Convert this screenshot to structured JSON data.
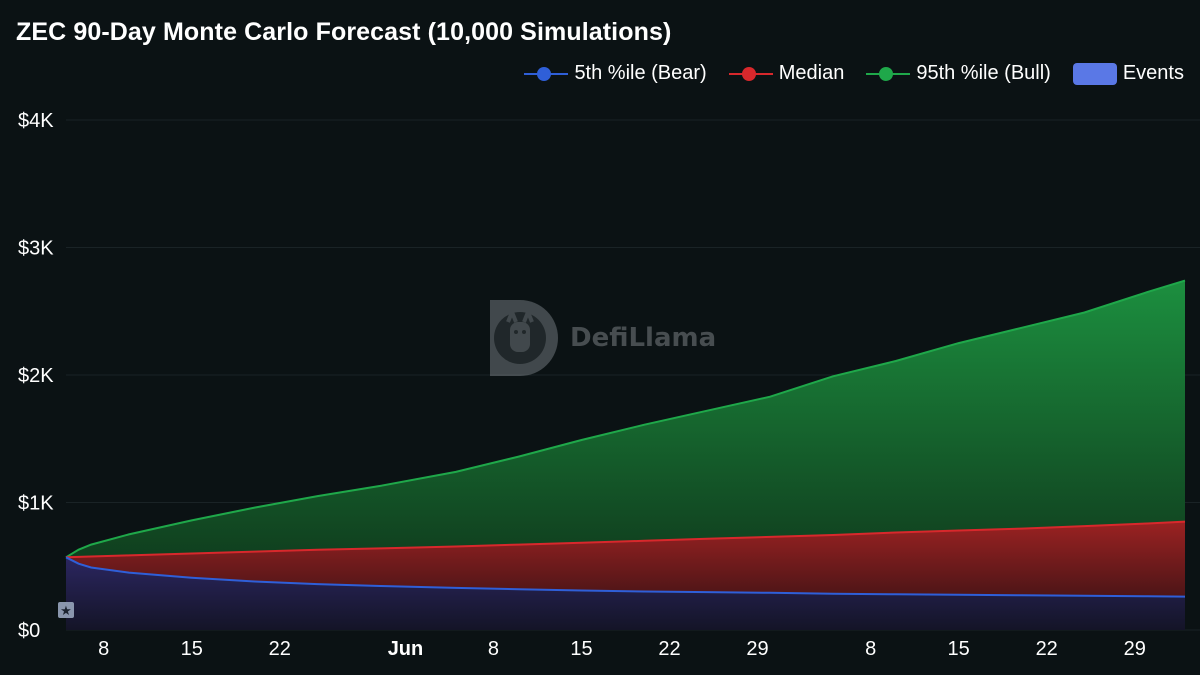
{
  "title": "ZEC 90-Day Monte Carlo Forecast (10,000 Simulations)",
  "watermark": "DefiLlama",
  "legend": [
    {
      "label": "5th %ile (Bear)",
      "color": "#2f5fd8",
      "kind": "line"
    },
    {
      "label": "Median",
      "color": "#d8282c",
      "kind": "line"
    },
    {
      "label": "95th %ile (Bull)",
      "color": "#1fa84a",
      "kind": "line"
    },
    {
      "label": "Events",
      "color": "#5a78e6",
      "kind": "rect"
    }
  ],
  "chart_data": {
    "type": "area",
    "title": "ZEC 90-Day Monte Carlo Forecast (10,000 Simulations)",
    "x_start": "May 5",
    "x_end": "Aug 2",
    "x_tick_labels": [
      "8",
      "15",
      "22",
      "Jun",
      "8",
      "15",
      "22",
      "29",
      "8",
      "15",
      "22",
      "29"
    ],
    "y_tick_labels": [
      "$0",
      "$1K",
      "$2K",
      "$3K",
      "$4K"
    ],
    "ylim": [
      0,
      4000
    ],
    "grid": true,
    "legend_position": "top-right",
    "series": [
      {
        "name": "95th %ile (Bull)",
        "color": "#1fa84a",
        "x": [
          "May 5",
          "May 6",
          "May 7",
          "May 10",
          "May 15",
          "May 20",
          "May 25",
          "May 30",
          "Jun 5",
          "Jun 10",
          "Jun 15",
          "Jun 20",
          "Jun 25",
          "Jun 30",
          "Jul 5",
          "Jul 10",
          "Jul 15",
          "Jul 20",
          "Jul 25",
          "Jul 30",
          "Aug 2"
        ],
        "values": [
          570,
          630,
          670,
          750,
          860,
          960,
          1050,
          1130,
          1240,
          1360,
          1490,
          1610,
          1720,
          1830,
          1990,
          2110,
          2250,
          2370,
          2490,
          2650,
          2740
        ]
      },
      {
        "name": "Median",
        "color": "#d8282c",
        "x": [
          "May 5",
          "May 10",
          "May 15",
          "May 20",
          "May 25",
          "May 30",
          "Jun 5",
          "Jun 10",
          "Jun 15",
          "Jun 20",
          "Jun 25",
          "Jun 30",
          "Jul 5",
          "Jul 10",
          "Jul 15",
          "Jul 20",
          "Jul 25",
          "Jul 30",
          "Aug 2"
        ],
        "values": [
          570,
          585,
          600,
          615,
          630,
          640,
          655,
          670,
          685,
          700,
          715,
          730,
          745,
          765,
          780,
          795,
          815,
          835,
          850
        ]
      },
      {
        "name": "5th %ile (Bear)",
        "color": "#2f5fd8",
        "x": [
          "May 5",
          "May 6",
          "May 7",
          "May 10",
          "May 15",
          "May 20",
          "May 25",
          "May 30",
          "Jun 5",
          "Jun 10",
          "Jun 15",
          "Jun 20",
          "Jun 25",
          "Jun 30",
          "Jul 5",
          "Jul 10",
          "Jul 15",
          "Jul 20",
          "Jul 25",
          "Jul 30",
          "Aug 2"
        ],
        "values": [
          570,
          520,
          490,
          450,
          410,
          380,
          360,
          345,
          330,
          320,
          310,
          302,
          297,
          292,
          285,
          280,
          276,
          272,
          268,
          264,
          262
        ]
      }
    ],
    "events": [
      {
        "x": "May 5",
        "icon": "star-icon"
      }
    ]
  }
}
